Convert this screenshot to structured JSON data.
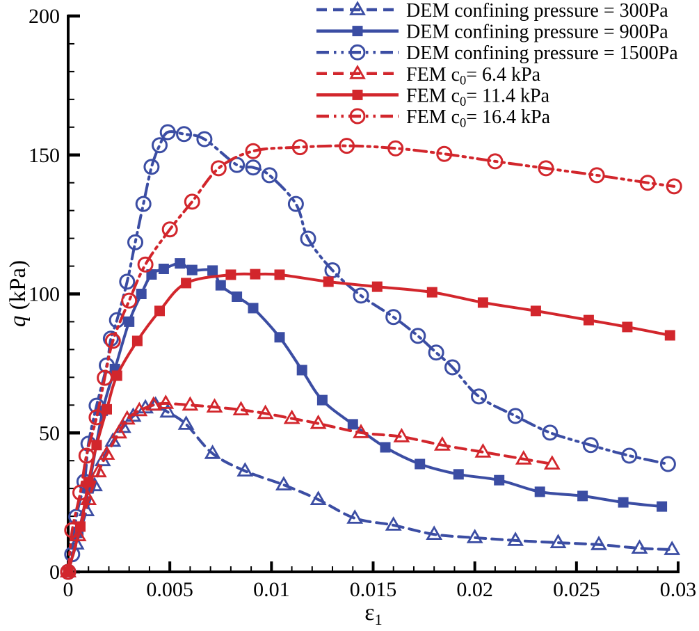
{
  "figure": {
    "background": "#ffffff",
    "text_color": "#000000",
    "axis_color": "#000000"
  },
  "chart_data": {
    "type": "line",
    "title": "",
    "xlabel": "ε1",
    "ylabel": "q (kPa)",
    "xlabel_parts": [
      {
        "t": "ε"
      },
      {
        "t": "1",
        "sub": true
      }
    ],
    "ylabel_parts": [
      {
        "t": "q",
        "italic": true
      },
      {
        "t": " (kPa)"
      }
    ],
    "xlim": [
      0,
      0.03
    ],
    "ylim": [
      0,
      200
    ],
    "x_ticks": {
      "major": [
        0,
        0.005,
        0.01,
        0.015,
        0.02,
        0.025,
        0.03
      ],
      "labels": [
        "0",
        "0.005",
        "0.01",
        "0.015",
        "0.02",
        "0.025",
        "0.03"
      ],
      "minor_step": 0.001
    },
    "y_ticks": {
      "major": [
        0,
        50,
        100,
        150,
        200
      ],
      "labels": [
        "0",
        "50",
        "100",
        "150",
        "200"
      ],
      "minor_step": 10
    },
    "grid": false,
    "frame": "left-bottom",
    "legend_position": "top-center-inside",
    "colors": {
      "dem_blue": "#3b4da3",
      "fem_red": "#d2262c"
    },
    "series": [
      {
        "id": "dem-300",
        "name": "DEM confining pressure = 300Pa",
        "label_parts": [
          {
            "t": "DEM confining pressure = 300Pa"
          }
        ],
        "color": "#3b4da3",
        "line": "dashed",
        "marker": "triangle",
        "marker_fill": "open",
        "points": [
          [
            0,
            0
          ],
          [
            0.0004,
            10
          ],
          [
            0.0009,
            22
          ],
          [
            0.0013,
            31
          ],
          [
            0.0017,
            40
          ],
          [
            0.0022,
            47
          ],
          [
            0.0027,
            52
          ],
          [
            0.0032,
            56
          ],
          [
            0.0038,
            59
          ],
          [
            0.0043,
            60
          ],
          [
            0.0049,
            57.5
          ],
          [
            0.0058,
            53.1
          ],
          [
            0.0071,
            42.6
          ],
          [
            0.0087,
            36.3
          ],
          [
            0.0106,
            31.3
          ],
          [
            0.0123,
            26
          ],
          [
            0.0141,
            19.3
          ],
          [
            0.016,
            16.8
          ],
          [
            0.018,
            13.5
          ],
          [
            0.02,
            12.3
          ],
          [
            0.022,
            11.3
          ],
          [
            0.0241,
            10.5
          ],
          [
            0.0261,
            9.8
          ],
          [
            0.0281,
            8.5
          ],
          [
            0.0297,
            8
          ]
        ]
      },
      {
        "id": "dem-900",
        "name": "DEM confining pressure = 900Pa",
        "label_parts": [
          {
            "t": "DEM confining pressure = 900Pa"
          }
        ],
        "color": "#3b4da3",
        "line": "solid",
        "marker": "square",
        "marker_fill": "filled",
        "points": [
          [
            0,
            0
          ],
          [
            0.0005,
            14
          ],
          [
            0.001,
            30
          ],
          [
            0.0017,
            58
          ],
          [
            0.0023,
            73
          ],
          [
            0.003,
            90
          ],
          [
            0.0036,
            100
          ],
          [
            0.0041,
            107
          ],
          [
            0.0047,
            109
          ],
          [
            0.0055,
            111
          ],
          [
            0.0061,
            108.6
          ],
          [
            0.0071,
            108.4
          ],
          [
            0.0075,
            103.1
          ],
          [
            0.0083,
            99
          ],
          [
            0.0091,
            94.9
          ],
          [
            0.0104,
            84.4
          ],
          [
            0.0115,
            72.6
          ],
          [
            0.0125,
            61.8
          ],
          [
            0.014,
            53.1
          ],
          [
            0.0156,
            44.8
          ],
          [
            0.0173,
            38.8
          ],
          [
            0.0192,
            35.1
          ],
          [
            0.0212,
            33
          ],
          [
            0.0232,
            28.8
          ],
          [
            0.0253,
            27.3
          ],
          [
            0.0273,
            25
          ],
          [
            0.0292,
            23.5
          ]
        ]
      },
      {
        "id": "dem-1500",
        "name": "DEM confining pressure = 1500Pa",
        "label_parts": [
          {
            "t": "DEM confining pressure = 1500Pa"
          }
        ],
        "color": "#3b4da3",
        "line": "dashdotdot",
        "marker": "circle",
        "marker_fill": "open",
        "points": [
          [
            0,
            0
          ],
          [
            0.0002,
            6.3
          ],
          [
            0.0004,
            19.8
          ],
          [
            0.0008,
            32.5
          ],
          [
            0.001,
            46.1
          ],
          [
            0.0014,
            59.8
          ],
          [
            0.0019,
            74.3
          ],
          [
            0.0021,
            83.9
          ],
          [
            0.0024,
            90.6
          ],
          [
            0.0029,
            104.4
          ],
          [
            0.0033,
            118.6
          ],
          [
            0.0037,
            132.4
          ],
          [
            0.0041,
            145.7
          ],
          [
            0.0045,
            153.5
          ],
          [
            0.0049,
            158.2
          ],
          [
            0.0057,
            157.5
          ],
          [
            0.0067,
            155.7
          ],
          [
            0.0083,
            146.4
          ],
          [
            0.0091,
            145.5
          ],
          [
            0.0099,
            142.7
          ],
          [
            0.0112,
            132.4
          ],
          [
            0.0118,
            119.9
          ],
          [
            0.013,
            108.5
          ],
          [
            0.0144,
            99.4
          ],
          [
            0.016,
            91.7
          ],
          [
            0.0172,
            84.9
          ],
          [
            0.0181,
            78.9
          ],
          [
            0.0189,
            73.6
          ],
          [
            0.0202,
            63.1
          ],
          [
            0.022,
            56.1
          ],
          [
            0.0237,
            50.1
          ],
          [
            0.0257,
            45.6
          ],
          [
            0.0276,
            41.8
          ],
          [
            0.0295,
            38.8
          ]
        ]
      },
      {
        "id": "fem-6-4",
        "name": "FEM c0= 6.4 kPa",
        "label_parts": [
          {
            "t": "FEM c"
          },
          {
            "t": "0",
            "sub": true
          },
          {
            "t": "= 6.4 kPa"
          }
        ],
        "color": "#d2262c",
        "line": "dashed",
        "marker": "triangle",
        "marker_fill": "open",
        "points": [
          [
            0,
            0
          ],
          [
            0.0005,
            13
          ],
          [
            0.001,
            26
          ],
          [
            0.0015,
            36
          ],
          [
            0.0019,
            42.3
          ],
          [
            0.0025,
            50
          ],
          [
            0.0029,
            55
          ],
          [
            0.0035,
            58
          ],
          [
            0.0042,
            60
          ],
          [
            0.0048,
            60.6
          ],
          [
            0.006,
            60
          ],
          [
            0.0072,
            59.3
          ],
          [
            0.0085,
            58.3
          ],
          [
            0.0097,
            57
          ],
          [
            0.011,
            55.2
          ],
          [
            0.0123,
            53.4
          ],
          [
            0.0144,
            50.1
          ],
          [
            0.0164,
            48.6
          ],
          [
            0.0184,
            45.6
          ],
          [
            0.0204,
            43.1
          ],
          [
            0.0224,
            40.6
          ],
          [
            0.0238,
            38.8
          ]
        ]
      },
      {
        "id": "fem-11-4",
        "name": "FEM c0= 11.4 kPa",
        "label_parts": [
          {
            "t": "FEM c"
          },
          {
            "t": "0",
            "sub": true
          },
          {
            "t": "= 11.4 kPa"
          }
        ],
        "color": "#d2262c",
        "line": "solid",
        "marker": "square",
        "marker_fill": "filled",
        "points": [
          [
            0,
            0
          ],
          [
            0.0006,
            16.3
          ],
          [
            0.001,
            32.3
          ],
          [
            0.0014,
            45.6
          ],
          [
            0.0019,
            58.5
          ],
          [
            0.0024,
            70.6
          ],
          [
            0.0034,
            83.1
          ],
          [
            0.0045,
            93.9
          ],
          [
            0.0058,
            103.9
          ],
          [
            0.008,
            106.9
          ],
          [
            0.0092,
            107.1
          ],
          [
            0.0104,
            106.9
          ],
          [
            0.0128,
            104.4
          ],
          [
            0.0152,
            102.6
          ],
          [
            0.0179,
            100.6
          ],
          [
            0.0204,
            96.9
          ],
          [
            0.023,
            93.9
          ],
          [
            0.0256,
            90.6
          ],
          [
            0.0275,
            88.1
          ],
          [
            0.0296,
            85.1
          ]
        ]
      },
      {
        "id": "fem-16-4",
        "name": "FEM c0= 16.4 kPa",
        "label_parts": [
          {
            "t": "FEM c"
          },
          {
            "t": "0",
            "sub": true
          },
          {
            "t": "= 16.4 kPa"
          }
        ],
        "color": "#d2262c",
        "line": "dashdotdot",
        "marker": "circle",
        "marker_fill": "open",
        "points": [
          [
            0,
            0
          ],
          [
            0.0002,
            15
          ],
          [
            0.0006,
            28.5
          ],
          [
            0.0009,
            41.8
          ],
          [
            0.0014,
            55.6
          ],
          [
            0.0018,
            69.8
          ],
          [
            0.0022,
            83.1
          ],
          [
            0.003,
            97.6
          ],
          [
            0.0038,
            110.6
          ],
          [
            0.005,
            123.2
          ],
          [
            0.0061,
            133.2
          ],
          [
            0.0074,
            145.2
          ],
          [
            0.0091,
            151.4
          ],
          [
            0.0114,
            152.8
          ],
          [
            0.0137,
            153.3
          ],
          [
            0.0161,
            152.4
          ],
          [
            0.0185,
            150.4
          ],
          [
            0.021,
            147.7
          ],
          [
            0.0235,
            145.2
          ],
          [
            0.026,
            142.7
          ],
          [
            0.0285,
            140
          ],
          [
            0.0298,
            138.7
          ]
        ]
      }
    ]
  }
}
